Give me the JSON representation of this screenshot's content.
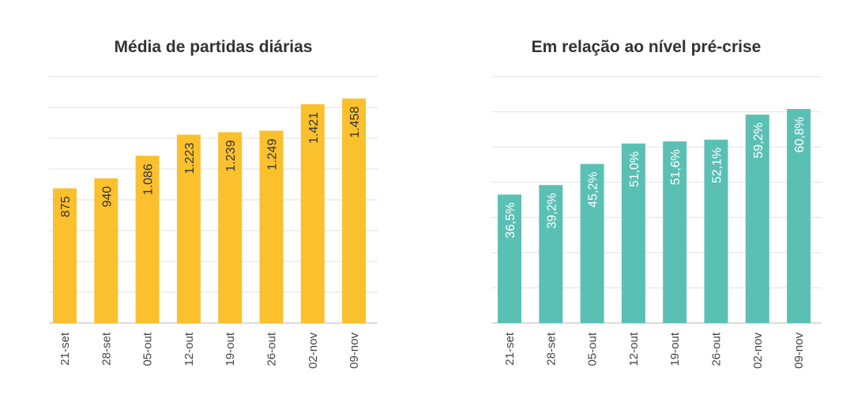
{
  "chart_data": [
    {
      "type": "bar",
      "title": "Média de partidas diárias",
      "categories": [
        "21-set",
        "28-set",
        "05-out",
        "12-out",
        "19-out",
        "26-out",
        "02-nov",
        "09-nov"
      ],
      "values": [
        875,
        940,
        1086,
        1223,
        1239,
        1249,
        1421,
        1458
      ],
      "data_labels": [
        "875",
        "940",
        "1.086",
        "1.223",
        "1.239",
        "1.249",
        "1.421",
        "1.458"
      ],
      "ylim": [
        0,
        1600
      ],
      "grid": true,
      "color": "#FBC02D",
      "label_color": "#333333"
    },
    {
      "type": "bar",
      "title": "Em relação ao nível pré-crise",
      "categories": [
        "21-set",
        "28-set",
        "05-out",
        "12-out",
        "19-out",
        "26-out",
        "02-nov",
        "09-nov"
      ],
      "values": [
        36.5,
        39.2,
        45.2,
        51.0,
        51.6,
        52.1,
        59.2,
        60.8
      ],
      "data_labels": [
        "36,5%",
        "39,2%",
        "45,2%",
        "51,0%",
        "51,6%",
        "52,1%",
        "59,2%",
        "60,8%"
      ],
      "ylim": [
        0,
        70
      ],
      "grid": true,
      "color": "#5BC0B4",
      "label_color": "#ffffff"
    }
  ]
}
